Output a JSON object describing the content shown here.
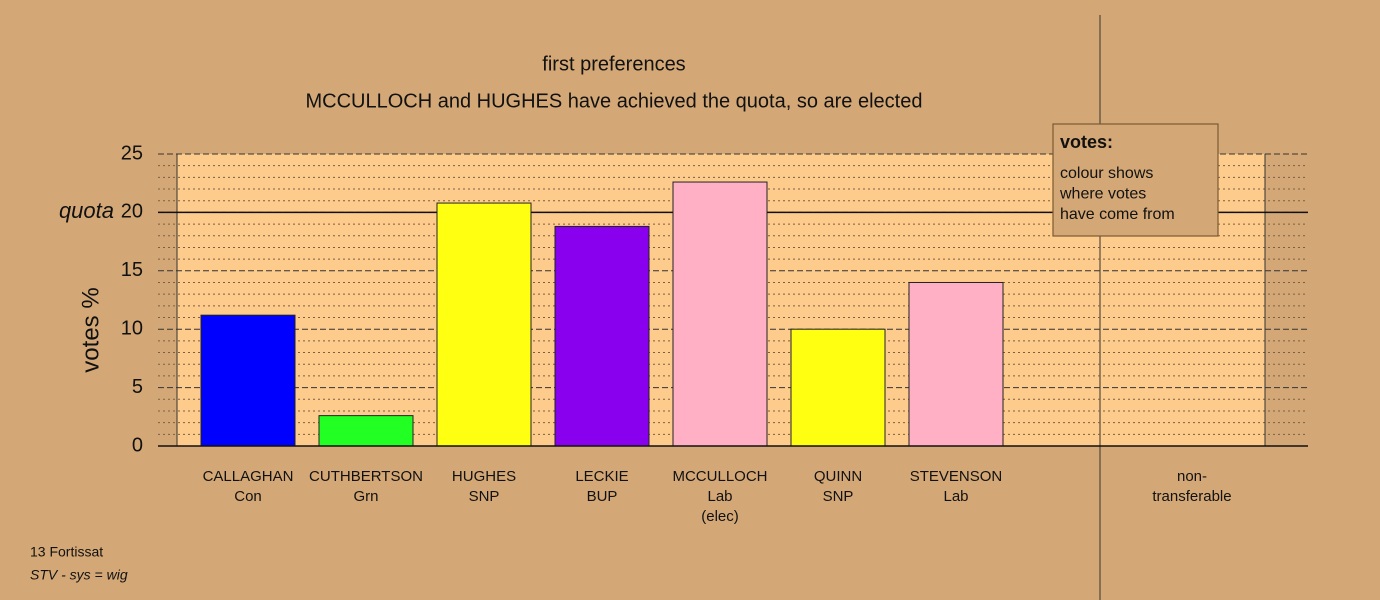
{
  "chart_data": {
    "type": "bar",
    "title": "first preferences",
    "subtitle": "MCCULLOCH and HUGHES have achieved the quota, so are elected",
    "y_label": "votes %",
    "categories": [
      [
        "CALLAGHAN",
        "Con"
      ],
      [
        "CUTHBERTSON",
        "Grn"
      ],
      [
        "HUGHES",
        "SNP"
      ],
      [
        "LECKIE",
        "BUP"
      ],
      [
        "MCCULLOCH",
        "Lab",
        "(elec)"
      ],
      [
        "QUINN",
        "SNP"
      ],
      [
        "STEVENSON",
        "Lab"
      ],
      [
        "non-",
        "transferable"
      ]
    ],
    "values": [
      11.2,
      2.6,
      20.8,
      18.8,
      22.6,
      10.0,
      14.0,
      0
    ],
    "colors": [
      "#0000ff",
      "#22ff22",
      "#ffff11",
      "#8800ee",
      "#ffb0c4",
      "#ffff11",
      "#ffb0c4",
      "#ffb0c4"
    ],
    "ylim": [
      0,
      25
    ],
    "yticks": [
      0,
      5,
      10,
      15,
      20,
      25
    ],
    "yticks_minor": [
      1,
      2,
      3,
      4,
      6,
      7,
      8,
      9,
      11,
      12,
      13,
      14,
      16,
      17,
      18,
      19,
      21,
      22,
      23,
      24
    ],
    "quota": {
      "label": "quota",
      "value": 20
    },
    "legend": {
      "title": "votes:",
      "lines": [
        "colour shows",
        "where votes",
        "have come from"
      ]
    },
    "footer": [
      "13 Fortissat",
      "STV - sys = wig"
    ]
  }
}
